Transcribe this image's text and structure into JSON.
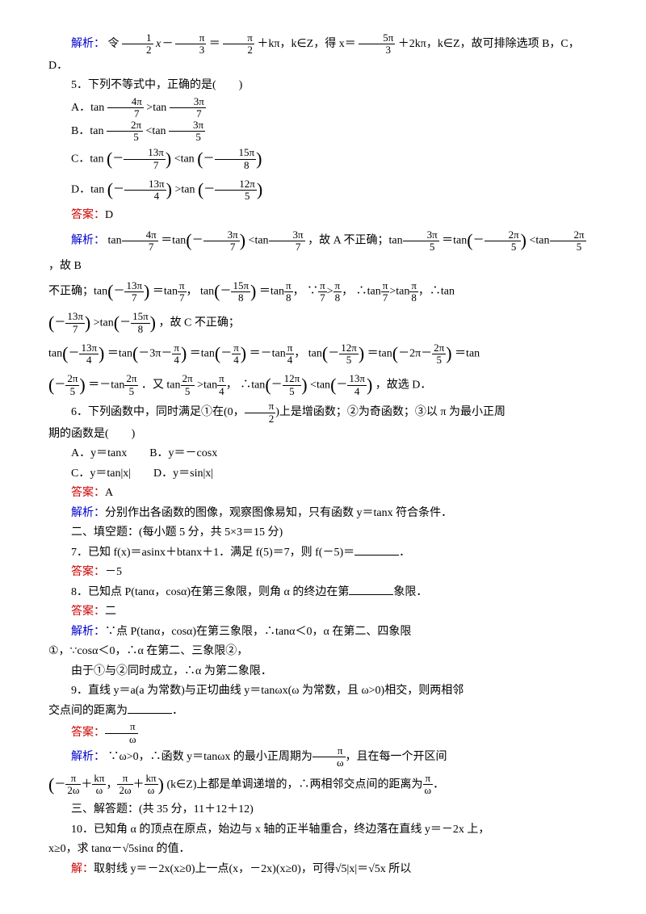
{
  "colors": {
    "analysis": "#0000cd",
    "answer": "#cc0000",
    "text": "#000000",
    "bg": "#ffffff"
  },
  "labels": {
    "jiexi": "解析：",
    "daan": "答案：",
    "jie": "解："
  },
  "q4": {
    "analysis_a": "令",
    "frac1": {
      "num": "1",
      "den": "2"
    },
    "analysis_b": "x－",
    "frac2": {
      "num": "π",
      "den": "3"
    },
    "analysis_c": "＝",
    "frac3": {
      "num": "π",
      "den": "2"
    },
    "analysis_d": "＋kπ，k∈Z，得 x＝",
    "frac4": {
      "num": "5π",
      "den": "3"
    },
    "analysis_e": "＋2kπ，k∈Z，故可排除选项 B，C，D．"
  },
  "q5": {
    "title": "5．下列不等式中，正确的是(　　)",
    "A_a": "A．tan",
    "A_f1": {
      "num": "4π",
      "den": "7"
    },
    "A_b": ">tan",
    "A_f2": {
      "num": "3π",
      "den": "7"
    },
    "B_a": "B．tan",
    "B_f1": {
      "num": "2π",
      "den": "5"
    },
    "B_b": "<tan",
    "B_f2": {
      "num": "3π",
      "den": "5"
    },
    "C_a": "C．tan",
    "C_f1": {
      "num": "13π",
      "den": "7"
    },
    "C_b": "<tan",
    "C_f2": {
      "num": "15π",
      "den": "8"
    },
    "D_a": "D．tan",
    "D_f1": {
      "num": "13π",
      "den": "4"
    },
    "D_b": ">tan",
    "D_f2": {
      "num": "12π",
      "den": "5"
    },
    "answer": "D",
    "ana1": "tan",
    "ana_note1": "，故 A 不正确；tan",
    "ana_note2": "，故 B",
    "ana_line2a": "不正确；tan",
    "ana_eq1": "＝tan",
    "ana_comma": "，",
    "ana_tan": "tan",
    "ana_because": "∵",
    "ana_so": "∴",
    "ana_gt": ">",
    "ana_lt": "<",
    "ana_note3": "，∴tan",
    "ana_note4": "，故 C 不正确；",
    "ana_note5": "＝－tan",
    "ana_note6": "＝tan",
    "ana_note7": "．又 tan",
    "ana_note8": "，故选 D．",
    "f_4pi7": {
      "num": "4π",
      "den": "7"
    },
    "f_3pi7": {
      "num": "3π",
      "den": "7"
    },
    "f_m3pi7": {
      "num": "3π",
      "den": "7"
    },
    "f_3pi5": {
      "num": "3π",
      "den": "5"
    },
    "f_2pi5": {
      "num": "2π",
      "den": "5"
    },
    "f_m2pi5": {
      "num": "2π",
      "den": "5"
    },
    "f_13pi7": {
      "num": "13π",
      "den": "7"
    },
    "f_pi7": {
      "num": "π",
      "den": "7"
    },
    "f_15pi8": {
      "num": "15π",
      "den": "8"
    },
    "f_pi8": {
      "num": "π",
      "den": "8"
    },
    "f_13pi4": {
      "num": "13π",
      "den": "4"
    },
    "f_pi4": {
      "num": "π",
      "den": "4"
    },
    "f_12pi5": {
      "num": "12π",
      "den": "5"
    },
    "txt_m3pi_m": "－3π－",
    "txt_m2pi_m": "－2π－"
  },
  "q6": {
    "title_a": "6．下列函数中，同时满足①在(0，",
    "titlefrac": {
      "num": "π",
      "den": "2"
    },
    "title_b": ")上是增函数；②为奇函数；③以 π 为最小正周",
    "title_c": "期的函数是(　　)",
    "A": "A．y＝tanx　　B．y＝－cosx",
    "C": "C．y＝tan|x|　　D．y＝sin|x|",
    "answer": "A",
    "analysis": "分别作出各函数的图像，观察图像易知，只有函数 y＝tanx 符合条件．"
  },
  "section2": "二、填空题：(每小题 5 分，共 5×3＝15 分)",
  "q7": {
    "text_a": "7．已知 f(x)＝asinx＋btanx＋1．满足 f(5)＝7，则 f(－5)＝",
    "text_b": "．",
    "answer": "－5"
  },
  "q8": {
    "text_a": "8．已知点 P(tanα，cosα)在第三象限，则角 α 的终边在第",
    "text_b": "象限．",
    "answer": "二",
    "analysis_a": "∵点 P(tanα，cosα)在第三象限，∴tanα＜0，α 在第二、四象限",
    "analysis_b": "①，∵cosα＜0，∴α 在第二、三象限②，",
    "analysis_c": "由于①与②同时成立，∴α 为第二象限．"
  },
  "q9": {
    "text_a": "9．直线 y＝a(a 为常数)与正切曲线 y＝tanωx(ω 为常数，且 ω>0)相交，则两相邻",
    "text_b": "交点间的距离为",
    "text_c": "．",
    "ans_frac": {
      "num": "π",
      "den": "ω"
    },
    "analysis_a": "∵ω>0，∴函数 y＝tanωx 的最小正周期为",
    "analysis_b": "，且在每一个开区间",
    "int_a": {
      "num": "π",
      "den": "2ω"
    },
    "int_b": {
      "num": "kπ",
      "den": "ω"
    },
    "analysis_c": "(k∈Z)上都是单调递增的，∴两相邻交点间的距离为",
    "analysis_d": "．"
  },
  "section3": "三、解答题：(共 35 分，11＋12＋12)",
  "q10": {
    "text_a": "10．已知角 α 的顶点在原点，始边与 x 轴的正半轴重合，终边落在直线 y＝－2x 上，",
    "text_b": "x≥0，求 tanα－√5sinα 的值．",
    "sol": "取射线 y＝－2x(x≥0)上一点(x，－2x)(x≥0)，可得√5|x|＝√5x 所以"
  }
}
